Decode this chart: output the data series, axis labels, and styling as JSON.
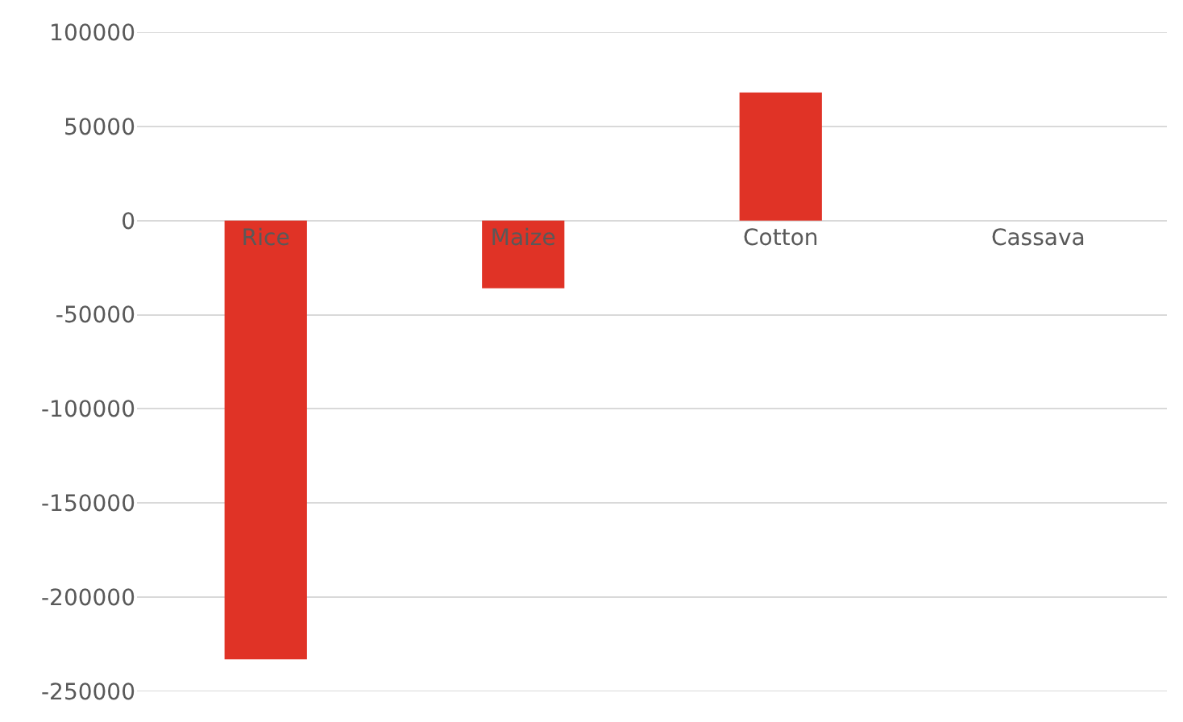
{
  "chart_data": {
    "type": "bar",
    "categories": [
      "Rice",
      "Maize",
      "Cotton",
      "Cassava"
    ],
    "values": [
      -233000,
      -36000,
      68000,
      0
    ],
    "color": "#e03326",
    "ylim": [
      -250000,
      100000
    ],
    "yticks": [
      -250000,
      -200000,
      -150000,
      -100000,
      -50000,
      0,
      50000,
      100000
    ],
    "grid": "y"
  }
}
